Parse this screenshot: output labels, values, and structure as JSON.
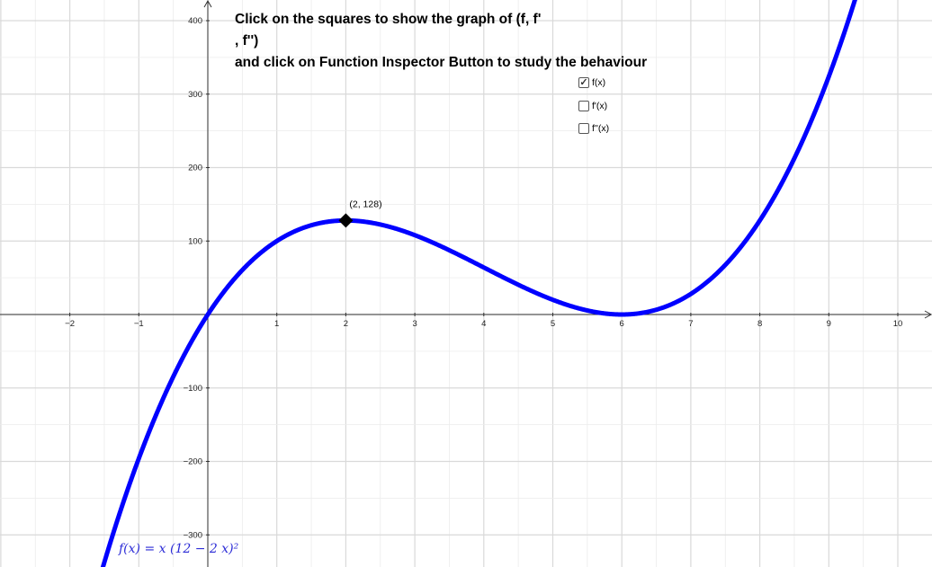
{
  "instructions": {
    "line1": "Click on the squares to show the graph of (f, f'",
    "line2": ", f'')",
    "line3": "and click on Function Inspector Button to study the behaviour"
  },
  "checkboxes": [
    {
      "label": "f(x)",
      "checked": true
    },
    {
      "label": "f'(x)",
      "checked": false
    },
    {
      "label": "f''(x)",
      "checked": false
    }
  ],
  "point": {
    "x": 2,
    "y": 128,
    "label": "(2, 128)"
  },
  "formula": "f(x) = x (12 − 2 x)²",
  "chart_data": {
    "type": "line",
    "function": "x*(12-2*x)^2",
    "xlim": [
      -3,
      10.5
    ],
    "ylim": [
      -340,
      420
    ],
    "x_ticks": [
      -2,
      -1,
      1,
      2,
      3,
      4,
      5,
      6,
      7,
      8,
      9,
      10
    ],
    "y_ticks": [
      -300,
      -200,
      -100,
      100,
      200,
      300,
      400
    ],
    "x_tick_labels": [
      "−2",
      "−1",
      "1",
      "2",
      "3",
      "4",
      "5",
      "6",
      "7",
      "8",
      "9",
      "10"
    ],
    "y_tick_labels": [
      "−300",
      "−200",
      "−100",
      "100",
      "200",
      "300",
      "400"
    ],
    "grid": true,
    "series": [
      {
        "color": "#0000ff"
      }
    ]
  }
}
